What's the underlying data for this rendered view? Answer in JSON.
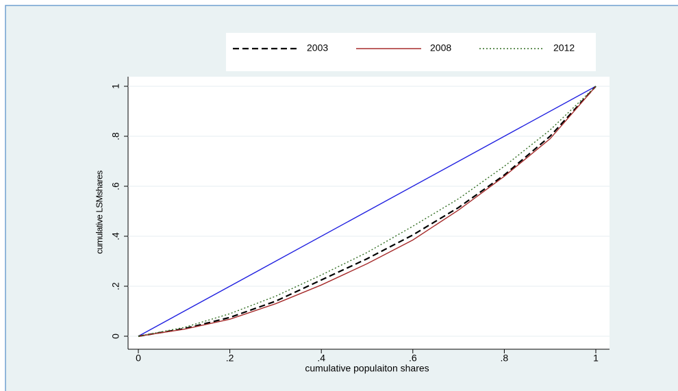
{
  "chart_data": {
    "type": "line",
    "xlabel": "cumulative populaiton shares",
    "ylabel": "cumulative LSMshares",
    "x": [
      0,
      0.1,
      0.2,
      0.3,
      0.4,
      0.5,
      0.6,
      0.7,
      0.8,
      0.9,
      1
    ],
    "series": [
      {
        "x": [
          0,
          1
        ],
        "values": [
          0,
          1
        ],
        "color": "#1f1fe0",
        "dash": "solid"
      },
      {
        "name": "2003",
        "color": "#000000",
        "dash": "dashed",
        "values": [
          0,
          0.03,
          0.075,
          0.14,
          0.225,
          0.31,
          0.405,
          0.515,
          0.645,
          0.8,
          1
        ]
      },
      {
        "name": "2008",
        "color": "#a52a2a",
        "dash": "solid",
        "values": [
          0,
          0.028,
          0.068,
          0.13,
          0.205,
          0.29,
          0.385,
          0.505,
          0.64,
          0.79,
          1
        ]
      },
      {
        "name": "2012",
        "color": "#2e6b1e",
        "dash": "dotted",
        "values": [
          0,
          0.035,
          0.09,
          0.16,
          0.245,
          0.335,
          0.44,
          0.55,
          0.68,
          0.825,
          1
        ]
      }
    ],
    "xlim": [
      0,
      1
    ],
    "ylim": [
      0,
      1
    ],
    "xticks": [
      0,
      {
        "value": 0.2,
        "label": ".2"
      },
      {
        "value": 0.4,
        "label": ".4"
      },
      {
        "value": 0.6,
        "label": ".6"
      },
      {
        "value": 0.8,
        "label": ".8"
      },
      1
    ],
    "yticks": [
      0,
      {
        "value": 0.2,
        "label": ".2"
      },
      {
        "value": 0.4,
        "label": ".4"
      },
      {
        "value": 0.6,
        "label": ".6"
      },
      {
        "value": 0.8,
        "label": ".8"
      },
      1
    ],
    "grid": true,
    "legend": "top"
  }
}
